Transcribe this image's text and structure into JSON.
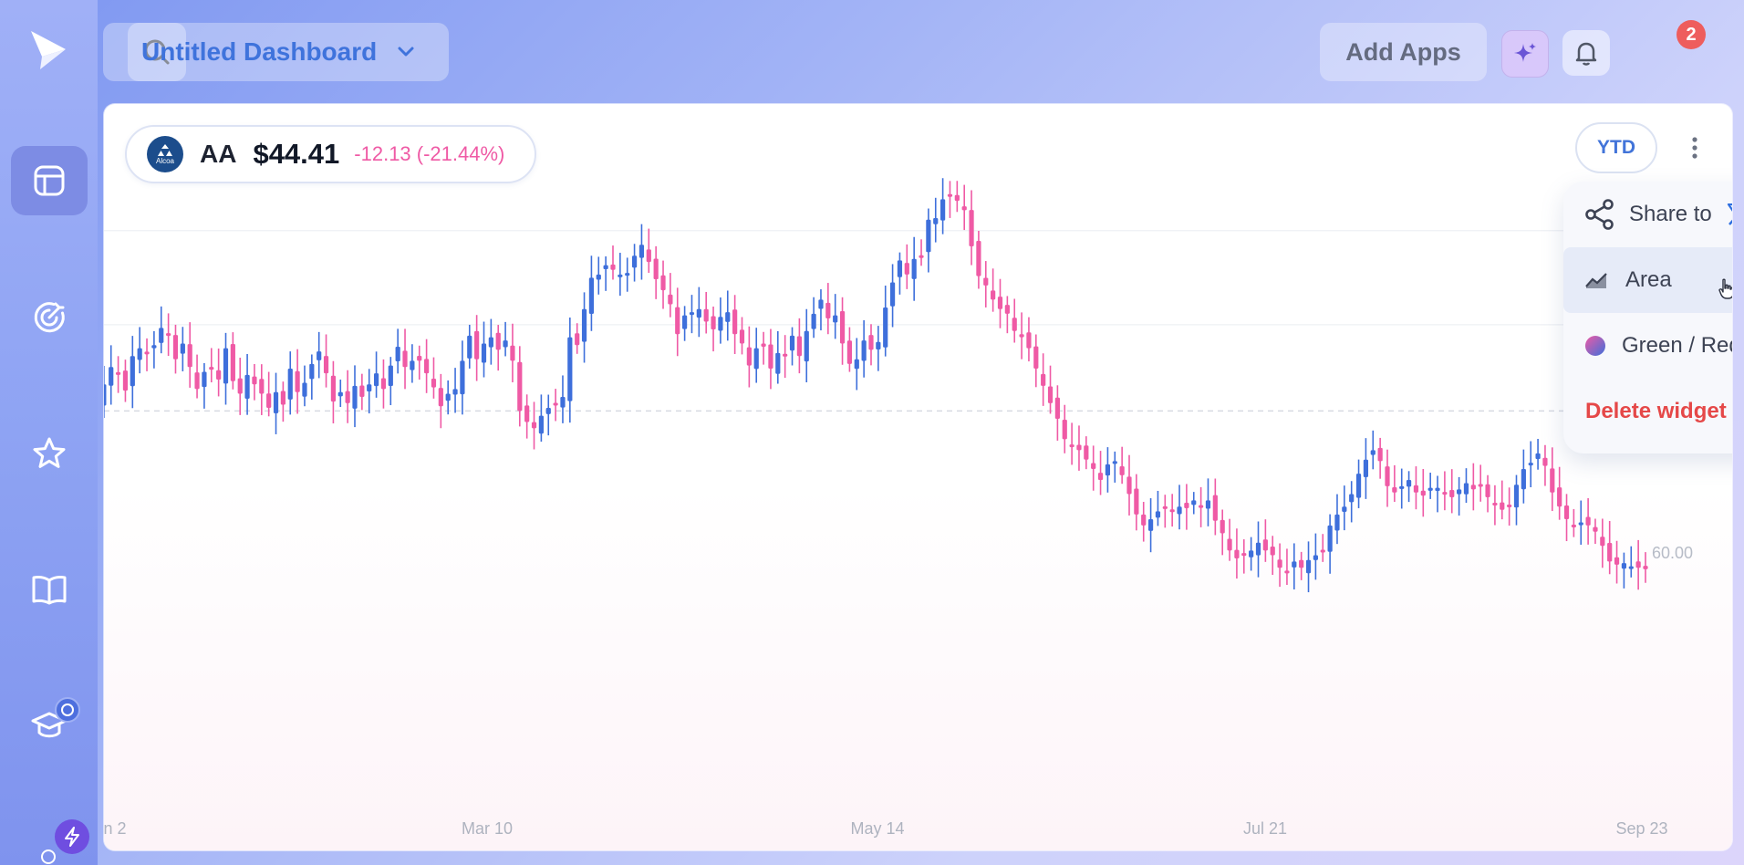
{
  "app": {
    "dashboard_title": "Untitled Dashboard",
    "add_apps_label": "Add Apps",
    "notification_count": "2",
    "colors": {
      "accent": "#3f73dc",
      "up": "#3e6fdb",
      "down": "#ef5aa5",
      "danger": "#e54848"
    }
  },
  "sidebar": {
    "items": [
      {
        "icon": "layout-icon",
        "active": true
      },
      {
        "icon": "target-icon",
        "active": false
      },
      {
        "icon": "star-icon",
        "active": false
      },
      {
        "icon": "book-icon",
        "active": false
      },
      {
        "icon": "graduation-cap-icon",
        "active": false
      },
      {
        "icon": "bolt-icon",
        "active": false
      }
    ]
  },
  "widget": {
    "logo_text": "Alcoa",
    "symbol": "AA",
    "price": "$44.41",
    "change": "-12.13 (-21.44%)",
    "range_label": "YTD",
    "menu": {
      "share_label": "Share to",
      "share_target": "X",
      "area_label": "Area",
      "color_label": "Green / Red",
      "delete_label": "Delete widget"
    },
    "price_axis_label": "60.00",
    "x_axis_labels": [
      "n 2",
      "Mar 10",
      "May 14",
      "Jul 21",
      "Sep 23"
    ]
  },
  "chart_data": {
    "type": "candlestick",
    "title": "",
    "xlabel": "",
    "ylabel": "",
    "x_ticks": [
      "n 2",
      "Mar 10",
      "May 14",
      "Jul 21",
      "Sep 23"
    ],
    "y_ticks": [
      60.0
    ],
    "y_range": [
      38.0,
      70.0
    ],
    "series": [
      {
        "closes": [
          54.5,
          56.2,
          57.3,
          56.9,
          55.8,
          58.0,
          58.5,
          58.2,
          58.7,
          59.8,
          59.4,
          57.8,
          58.8,
          57.3,
          55.9,
          57.0,
          57.3,
          56.5,
          58.5,
          56.4,
          55.6,
          56.8,
          56.2,
          55.6,
          54.7,
          55.7,
          54.9,
          57.2,
          55.7,
          56.3,
          57.5,
          58.3,
          56.9,
          55.1,
          55.7,
          55.0,
          56.1,
          55.4,
          56.2,
          56.9,
          55.9,
          57.4,
          58.6,
          57.3,
          57.7,
          57.7,
          56.9,
          56.0,
          54.8,
          55.6,
          55.9,
          57.7,
          59.3,
          57.8,
          58.8,
          59.2,
          58.4,
          59.0,
          57.7,
          54.5,
          53.8,
          53.4,
          54.2,
          54.7,
          54.9,
          55.4,
          59.2,
          58.7,
          61.0,
          63.0,
          63.2,
          63.8,
          63.5,
          63.2,
          63.3,
          64.4,
          65.1,
          64.0,
          62.9,
          62.2,
          61.3,
          59.4,
          60.6,
          60.8,
          61.0,
          60.2,
          59.7,
          60.5,
          60.8,
          59.4,
          58.8,
          57.4,
          58.5,
          58.6,
          57.2,
          58.2,
          58.0,
          59.3,
          58.0,
          59.6,
          60.7,
          61.6,
          60.4,
          60.6,
          58.8,
          57.5,
          57.8,
          59.0,
          58.4,
          58.9,
          61.1,
          62.7,
          64.1,
          63.2,
          64.2,
          64.4,
          66.7,
          66.8,
          68.0,
          68.2,
          67.9,
          67.3,
          65.0,
          63.1,
          62.5,
          61.6,
          61.0,
          60.7,
          59.6,
          59.2,
          58.5,
          57.2,
          56.1,
          55.0,
          54.0,
          52.7,
          52.2,
          52.0,
          51.4,
          50.8,
          50.1,
          51.1,
          51.3,
          50.4,
          49.2,
          47.9,
          47.2,
          47.6,
          48.1,
          48.4,
          48.2,
          48.4,
          48.3,
          48.8,
          48.4,
          48.8,
          47.5,
          46.7,
          45.6,
          45.1,
          45.3,
          45.6,
          46.1,
          45.6,
          45.3,
          44.5,
          44.2,
          44.9,
          44.5,
          45.0,
          45.3,
          45.6,
          47.2,
          47.9,
          48.4,
          49.2,
          50.5,
          51.4,
          52.0,
          51.3,
          49.7,
          49.3,
          49.7,
          50.1,
          49.3,
          49.1,
          49.6,
          49.6,
          49.2,
          49.0,
          49.5,
          49.9,
          49.5,
          49.8,
          49.0,
          48.6,
          48.2,
          48.5,
          49.8,
          50.8,
          51.2,
          51.8,
          51.0,
          49.3,
          48.4,
          47.6,
          47.2,
          47.4,
          47.2,
          46.8,
          45.9,
          44.9,
          44.7,
          44.8,
          44.6,
          44.5,
          44.41
        ]
      }
    ]
  }
}
